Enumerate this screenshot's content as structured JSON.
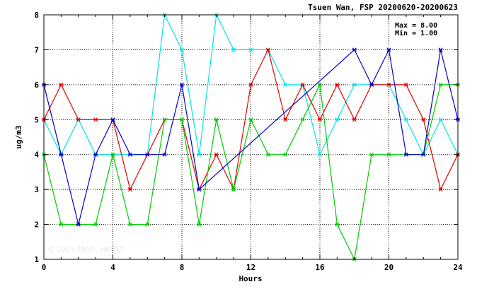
{
  "chart_data": {
    "type": "line",
    "title": "Tsuen Wan, FSP 20200620-20200623",
    "xlabel": "Hours",
    "ylabel": "ug/m3",
    "xlim": [
      0,
      24
    ],
    "ylim": [
      1,
      8
    ],
    "xticks": [
      "0",
      "4",
      "8",
      "12",
      "16",
      "20",
      "24"
    ],
    "yticks": [
      "1",
      "2",
      "3",
      "4",
      "5",
      "6",
      "7",
      "8"
    ],
    "grid": true,
    "annotations": {
      "max": "Max = 8.00",
      "min": "Min = 1.00"
    },
    "watermark": "© 2025 ENVF, HKUST",
    "series": [
      {
        "color": "#00e5e5",
        "x": [
          0,
          1,
          2,
          3,
          4,
          5,
          6,
          7,
          8,
          9,
          10,
          11,
          12,
          13,
          14,
          15,
          16,
          17,
          18,
          19,
          20,
          21,
          22,
          23,
          24
        ],
        "values": [
          5,
          4,
          5,
          4,
          4,
          4,
          4,
          8,
          7,
          4,
          8,
          7,
          7,
          7,
          6,
          6,
          4,
          5,
          6,
          6,
          6,
          5,
          4,
          5,
          4
        ]
      },
      {
        "color": "#e00000",
        "x": [
          0,
          1,
          2,
          3,
          4,
          5,
          6,
          7,
          8,
          9,
          10,
          11,
          12,
          13,
          14,
          15,
          16,
          17,
          18,
          19,
          20,
          21,
          22,
          23,
          24
        ],
        "values": [
          5,
          6,
          5,
          5,
          5,
          3,
          4,
          5,
          5,
          3,
          4,
          3,
          6,
          7,
          5,
          6,
          5,
          6,
          5,
          6,
          6,
          6,
          5,
          3,
          4
        ]
      },
      {
        "color": "#00cc00",
        "x": [
          0,
          1,
          2,
          3,
          4,
          5,
          6,
          7,
          8,
          9,
          10,
          11,
          12,
          13,
          14,
          15,
          16,
          17,
          18,
          19,
          20,
          21,
          22,
          23,
          24
        ],
        "values": [
          4,
          2,
          2,
          2,
          4,
          2,
          2,
          5,
          5,
          2,
          5,
          3,
          5,
          4,
          4,
          5,
          6,
          2,
          1,
          4,
          4,
          4,
          4,
          6,
          6
        ]
      },
      {
        "color": "#0000cc",
        "x": [
          0,
          1,
          2,
          3,
          4,
          5,
          6,
          7,
          8,
          9,
          18,
          19,
          20,
          21,
          22,
          23,
          24
        ],
        "values": [
          6,
          4,
          2,
          4,
          5,
          4,
          4,
          4,
          6,
          3,
          7,
          6,
          7,
          4,
          4,
          7,
          5
        ]
      }
    ]
  }
}
